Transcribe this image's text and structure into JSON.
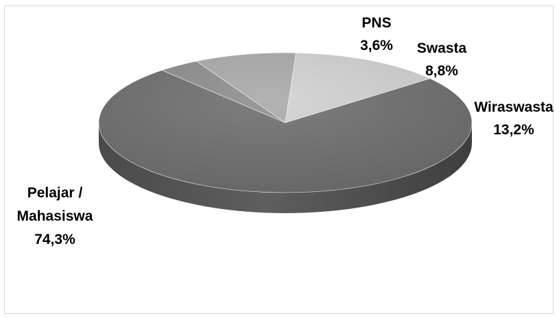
{
  "chart_data": {
    "type": "pie",
    "title": "",
    "categories": [
      "Pelajar / Mahasiswa",
      "PNS",
      "Swasta",
      "Wiraswasta"
    ],
    "values": [
      74.3,
      3.6,
      8.8,
      13.2
    ],
    "value_labels": [
      "74,3%",
      "3,6%",
      "8,8%",
      "13,2%"
    ],
    "colors": [
      "#6f6f6f",
      "#8e8e8e",
      "#aaaaaa",
      "#d2d2d2"
    ],
    "style": "3d-pie",
    "legend": "none",
    "data_labels": [
      {
        "lines": [
          "Pelajar /",
          "Mahasiswa"
        ],
        "value": "74,3%"
      },
      {
        "lines": [
          "PNS"
        ],
        "value": "3,6%"
      },
      {
        "lines": [
          "Swasta"
        ],
        "value": "8,8%"
      },
      {
        "lines": [
          "Wiraswasta"
        ],
        "value": "13,2%"
      }
    ]
  }
}
